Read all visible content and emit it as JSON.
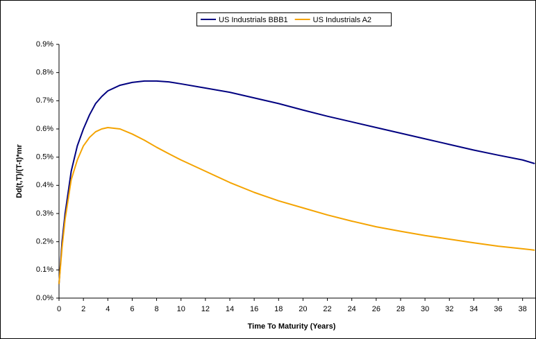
{
  "chart_data": {
    "type": "line",
    "x_label": "Time To Maturity (Years)",
    "y_label": "Dd(t,T)/(T-t)*mr",
    "x": [
      0,
      0.25,
      0.5,
      1,
      1.5,
      2,
      2.5,
      3,
      3.5,
      4,
      5,
      6,
      7,
      8,
      9,
      10,
      12,
      14,
      16,
      18,
      20,
      22,
      24,
      26,
      28,
      30,
      32,
      34,
      36,
      38,
      39
    ],
    "series": [
      {
        "name": "US Industrials BBB1",
        "color": "#000080",
        "values": [
          0.05,
          0.2,
          0.3,
          0.45,
          0.54,
          0.6,
          0.65,
          0.69,
          0.715,
          0.735,
          0.755,
          0.765,
          0.77,
          0.77,
          0.767,
          0.76,
          0.745,
          0.73,
          0.71,
          0.69,
          0.667,
          0.645,
          0.625,
          0.605,
          0.585,
          0.565,
          0.545,
          0.525,
          0.507,
          0.49,
          0.477
        ]
      },
      {
        "name": "US Industrials A2",
        "color": "#f4a300",
        "values": [
          0.05,
          0.18,
          0.28,
          0.42,
          0.49,
          0.54,
          0.57,
          0.59,
          0.6,
          0.605,
          0.6,
          0.582,
          0.56,
          0.535,
          0.512,
          0.49,
          0.45,
          0.41,
          0.375,
          0.345,
          0.32,
          0.295,
          0.273,
          0.253,
          0.237,
          0.222,
          0.209,
          0.196,
          0.184,
          0.175,
          0.17
        ]
      }
    ],
    "xlim": [
      0,
      39.1
    ],
    "ylim": [
      0,
      0.9
    ],
    "xticks": [
      0,
      2,
      4,
      6,
      8,
      10,
      12,
      14,
      16,
      18,
      20,
      22,
      24,
      26,
      28,
      30,
      32,
      34,
      36,
      38
    ],
    "yticks": [
      {
        "value": 0,
        "label": "0.0%"
      },
      {
        "value": 0.1,
        "label": "0.1%"
      },
      {
        "value": 0.2,
        "label": "0.2%"
      },
      {
        "value": 0.3,
        "label": "0.3%"
      },
      {
        "value": 0.4,
        "label": "0.4%"
      },
      {
        "value": 0.5,
        "label": "0.5%"
      },
      {
        "value": 0.6,
        "label": "0.6%"
      },
      {
        "value": 0.7,
        "label": "0.7%"
      },
      {
        "value": 0.8,
        "label": "0.8%"
      },
      {
        "value": 0.9,
        "label": "0.9%"
      }
    ],
    "grid": false,
    "legend": "top"
  }
}
